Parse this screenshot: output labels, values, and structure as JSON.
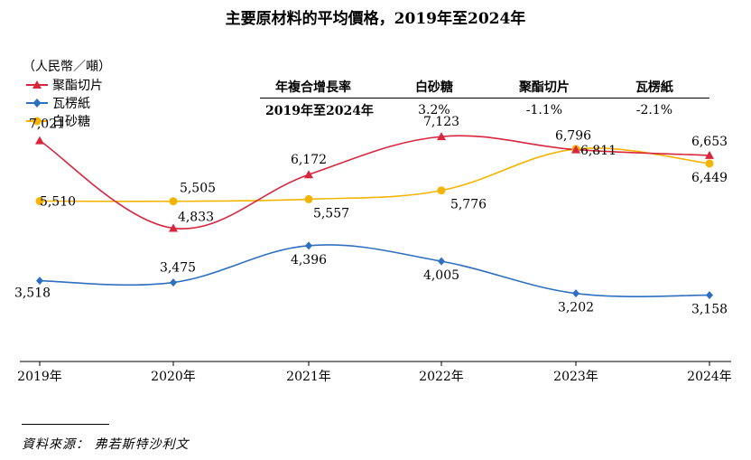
{
  "chart_data": {
    "type": "line",
    "title": "主要原材料的平均價格，2019年至2024年",
    "ylabel": "（人民幣／噸）",
    "categories": [
      "2019年",
      "2020年",
      "2021年",
      "2022年",
      "2023年",
      "2024年"
    ],
    "ylim": [
      1500,
      7600
    ],
    "grid": false,
    "legend_placement": "top-left",
    "series": [
      {
        "name": "聚酯切片",
        "color": "#d7263d",
        "marker": "triangle",
        "values": [
          7021,
          4833,
          6172,
          7123,
          6796,
          6653
        ],
        "labels": [
          "7,021",
          "4,833",
          "6,172",
          "7,123",
          "6,796",
          "6,653"
        ]
      },
      {
        "name": "瓦楞紙",
        "color": "#2f6fbf",
        "marker": "diamond",
        "values": [
          3518,
          3475,
          4396,
          4005,
          3202,
          3158
        ],
        "labels": [
          "3,518",
          "3,475",
          "4,396",
          "4,005",
          "3,202",
          "3,158"
        ]
      },
      {
        "name": "白砂糖",
        "color": "#f5b400",
        "marker": "circle",
        "values": [
          5510,
          5505,
          5557,
          5776,
          6811,
          6449
        ],
        "labels": [
          "5,510",
          "5,505",
          "5,557",
          "5,776",
          "6,811",
          "6,449"
        ]
      }
    ]
  },
  "cagr_table": {
    "headers": [
      "年複合增長率",
      "白砂糖",
      "聚酯切片",
      "瓦楞紙"
    ],
    "row": [
      "2019年至2024年",
      "3.2%",
      "-1.1%",
      "-2.1%"
    ]
  },
  "source": "資料來源：  弗若斯特沙利文"
}
